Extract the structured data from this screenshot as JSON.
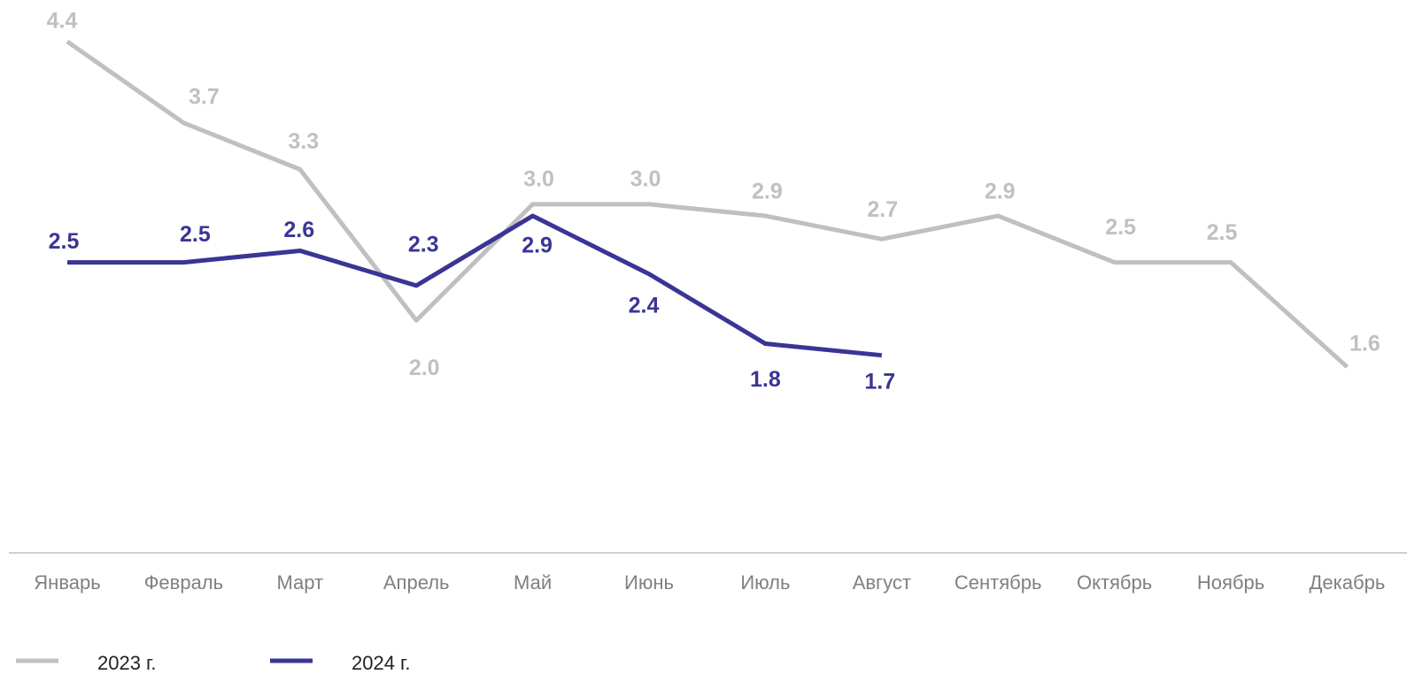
{
  "chart_data": {
    "type": "line",
    "categories": [
      "Январь",
      "Февраль",
      "Март",
      "Апрель",
      "Май",
      "Июнь",
      "Июль",
      "Август",
      "Сентябрь",
      "Октябрь",
      "Ноябрь",
      "Декабрь"
    ],
    "series": [
      {
        "name": "2023 г.",
        "color": "#c0c0c0",
        "values": [
          4.4,
          3.7,
          3.3,
          2.0,
          3.0,
          3.0,
          2.9,
          2.7,
          2.9,
          2.5,
          2.5,
          1.6
        ],
        "value_labels": [
          "4.4",
          "3.7",
          "3.3",
          "2.0",
          "3.0",
          "3.0",
          "2.9",
          "2.7",
          "2.9",
          "2.5",
          "2.5",
          "1.6"
        ]
      },
      {
        "name": "2024 г.",
        "color": "#3a3594",
        "values": [
          2.5,
          2.5,
          2.6,
          2.3,
          2.9,
          2.4,
          1.8,
          1.7,
          null,
          null,
          null,
          null
        ],
        "value_labels": [
          "2.5",
          "2.5",
          "2.6",
          "2.3",
          "2.9",
          "2.4",
          "1.8",
          "1.7",
          null,
          null,
          null,
          null
        ]
      }
    ],
    "ylim": [
      0,
      4.4
    ]
  }
}
